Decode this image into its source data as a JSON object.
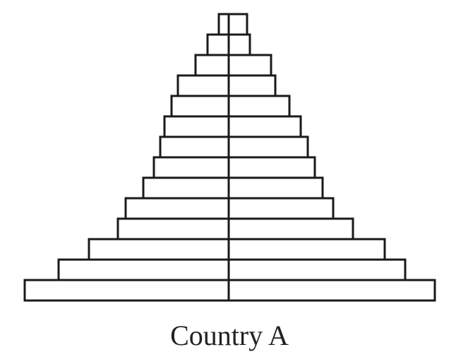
{
  "chart_data": {
    "type": "bar",
    "subtype": "population-pyramid",
    "title": "Country A",
    "xlabel": "",
    "ylabel": "",
    "grid": false,
    "legend": "none",
    "age_groups_bottom_to_top": 14,
    "series": [
      {
        "side": "left",
        "values": [
          28.9,
          24.1,
          19.8,
          15.7,
          14.6,
          12.1,
          10.6,
          9.7,
          9.1,
          8.1,
          7.2,
          4.7,
          3.0,
          1.4
        ]
      },
      {
        "side": "right",
        "values": [
          29.2,
          25.0,
          22.1,
          17.6,
          14.8,
          13.3,
          12.2,
          11.2,
          10.2,
          8.6,
          6.6,
          6.0,
          3.0,
          2.6
        ]
      }
    ],
    "xlim": [
      -30,
      30
    ],
    "colors": {
      "bar_fill": "#ffffff",
      "bar_stroke": "#1a1a1a"
    }
  }
}
